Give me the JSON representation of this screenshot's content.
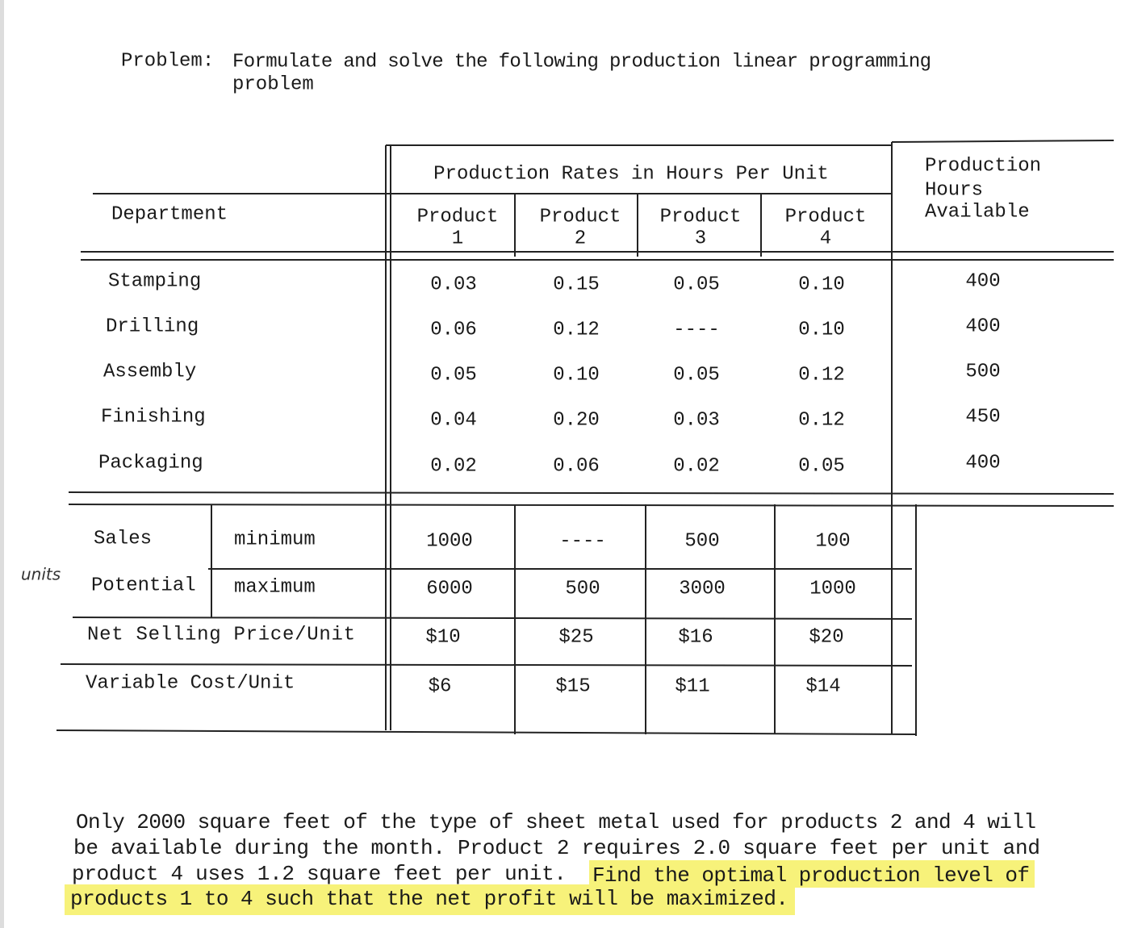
{
  "problem": {
    "label": "Problem:",
    "text_lines": [
      "Formulate and solve the following production linear programming",
      "problem"
    ]
  },
  "table": {
    "group_header": "Production Rates in Hours Per Unit",
    "department_header": "Department",
    "products": [
      [
        "Product",
        "1"
      ],
      [
        "Product",
        "2"
      ],
      [
        "Product",
        "3"
      ],
      [
        "Product",
        "4"
      ]
    ],
    "hours_header": [
      "Production",
      "Hours",
      "Available"
    ],
    "departments": [
      {
        "name": "Stamping",
        "rates": [
          "0.03",
          "0.15",
          "0.05",
          "0.10"
        ],
        "hours": "400"
      },
      {
        "name": "Drilling",
        "rates": [
          "0.06",
          "0.12",
          "----",
          "0.10"
        ],
        "hours": "400"
      },
      {
        "name": "Assembly",
        "rates": [
          "0.05",
          "0.10",
          "0.05",
          "0.12"
        ],
        "hours": "500"
      },
      {
        "name": "Finishing",
        "rates": [
          "0.04",
          "0.20",
          "0.03",
          "0.12"
        ],
        "hours": "450"
      },
      {
        "name": "Packaging",
        "rates": [
          "0.02",
          "0.06",
          "0.02",
          "0.05"
        ],
        "hours": "400"
      }
    ],
    "sales": {
      "label": [
        "Sales",
        "Potential"
      ],
      "side_note": "units",
      "minimum": {
        "label": "minimum",
        "values": [
          "1000",
          "----",
          "500",
          "100"
        ]
      },
      "maximum": {
        "label": "maximum",
        "values": [
          "6000",
          "500",
          "3000",
          "1000"
        ]
      }
    },
    "price": {
      "label": "Net Selling Price/Unit",
      "values": [
        "$10",
        "$25",
        "$16",
        "$20"
      ]
    },
    "cost": {
      "label": "Variable Cost/Unit",
      "values": [
        "$6",
        "$15",
        "$11",
        "$14"
      ]
    }
  },
  "note": {
    "lines": [
      "Only 2000 square feet of the type of sheet metal used for products 2 and 4 will",
      "be available during the month.  Product 2 requires 2.0 square feet per unit and",
      "product 4 uses 1.2 square feet per unit."
    ],
    "highlight": [
      "Find the optimal production level of",
      "products 1 to 4 such that the net profit will be maximized."
    ]
  }
}
